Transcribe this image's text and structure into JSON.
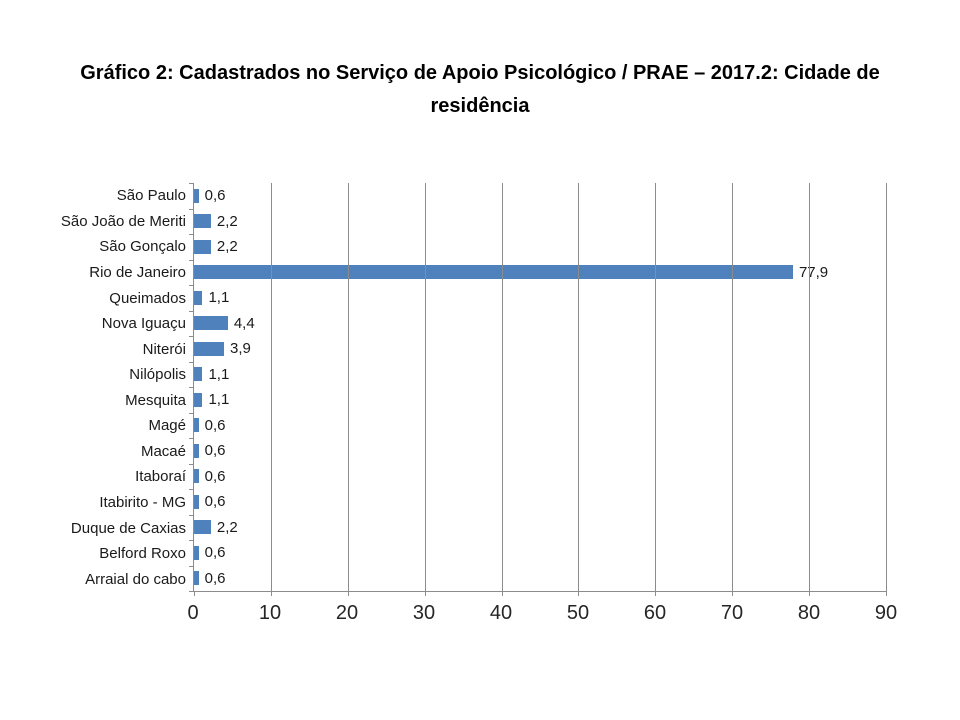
{
  "title_lines": [
    "Gráfico 2: Cadastrados no Serviço de Apoio Psicológico / PRAE – 2017.2: Cidade de",
    "residência"
  ],
  "chart_data": {
    "type": "bar",
    "orientation": "horizontal",
    "title": "Gráfico 2: Cadastrados no Serviço de Apoio Psicológico / PRAE – 2017.2: Cidade de residência",
    "categories": [
      "São Paulo",
      "São João de Meriti",
      "São Gonçalo",
      "Rio de Janeiro",
      "Queimados",
      "Nova Iguaçu",
      "Niterói",
      "Nilópolis",
      "Mesquita",
      "Magé",
      "Macaé",
      "Itaboraí",
      "Itabirito - MG",
      "Duque de Caxias",
      "Belford Roxo",
      "Arraial do cabo"
    ],
    "values": [
      0.6,
      2.2,
      2.2,
      77.9,
      1.1,
      4.4,
      3.9,
      1.1,
      1.1,
      0.6,
      0.6,
      0.6,
      0.6,
      2.2,
      0.6,
      0.6
    ],
    "value_labels": [
      "0,6",
      "2,2",
      "2,2",
      "77,9",
      "1,1",
      "4,4",
      "3,9",
      "1,1",
      "1,1",
      "0,6",
      "0,6",
      "0,6",
      "0,6",
      "2,2",
      "0,6",
      "0,6"
    ],
    "x_ticks": [
      0,
      10,
      20,
      30,
      40,
      50,
      60,
      70,
      80,
      90
    ],
    "xlim": [
      0,
      90
    ],
    "xlabel": "",
    "ylabel": "",
    "grid": true,
    "legend": false,
    "bar_color": "#4F81BD",
    "gridline_color": "#8C8C8C",
    "axis_color": "#8C8C8C",
    "background_color": "#FFFFFF"
  }
}
